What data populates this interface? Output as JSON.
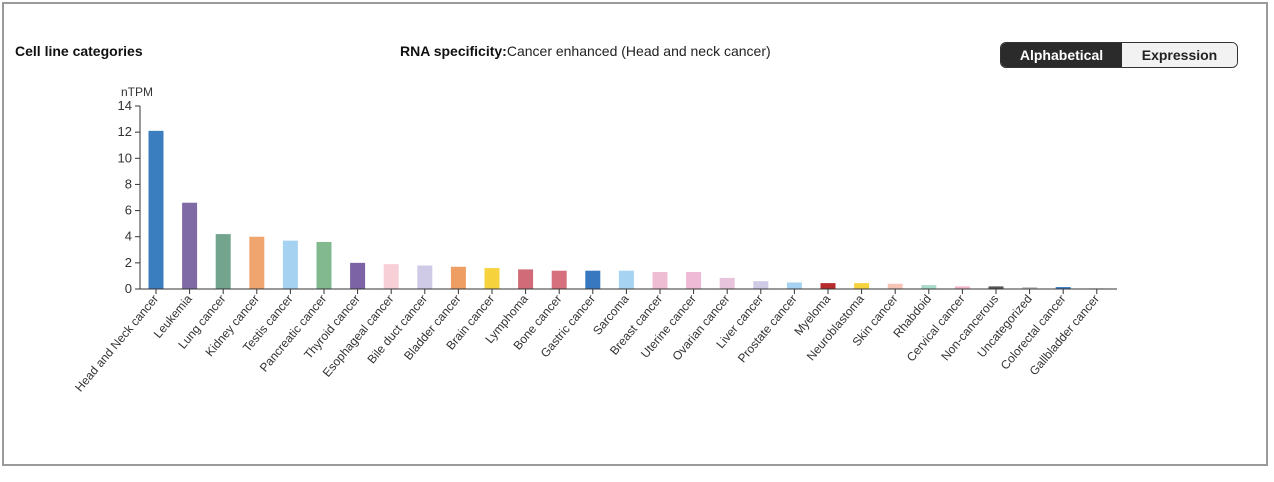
{
  "panel": {
    "title": "Cell line categories"
  },
  "specificity": {
    "label": "RNA specificity:",
    "value": "Cancer enhanced (Head and neck cancer)"
  },
  "sort_toggle": {
    "options": [
      "Alphabetical",
      "Expression"
    ],
    "selected": "Alphabetical"
  },
  "chart_data": {
    "type": "bar",
    "title": "",
    "xlabel": "",
    "ylabel": "nTPM",
    "ylim": [
      0,
      14
    ],
    "yticks": [
      0,
      2,
      4,
      6,
      8,
      10,
      12,
      14
    ],
    "grid": false,
    "categories": [
      "Head and Neck cancer",
      "Leukemia",
      "Lung cancer",
      "Kidney cancer",
      "Testis cancer",
      "Pancreatic cancer",
      "Thyroid cancer",
      "Esophageal cancer",
      "Bile duct cancer",
      "Bladder cancer",
      "Brain cancer",
      "Lymphoma",
      "Bone cancer",
      "Gastric cancer",
      "Sarcoma",
      "Breast cancer",
      "Uterine cancer",
      "Ovarian cancer",
      "Liver cancer",
      "Prostate cancer",
      "Myeloma",
      "Neuroblastoma",
      "Skin cancer",
      "Rhabdoid",
      "Cervical cancer",
      "Non-cancerous",
      "Uncategorized",
      "Colorectal cancer",
      "Gallbladder cancer"
    ],
    "values": [
      12.1,
      6.6,
      4.2,
      4.0,
      3.7,
      3.6,
      2.0,
      1.9,
      1.8,
      1.7,
      1.6,
      1.5,
      1.4,
      1.4,
      1.4,
      1.3,
      1.3,
      0.85,
      0.6,
      0.5,
      0.45,
      0.45,
      0.4,
      0.3,
      0.2,
      0.2,
      0.15,
      0.15,
      0.05
    ],
    "colors": [
      "#3b7ec0",
      "#7f6aa5",
      "#72a48e",
      "#f0a46e",
      "#a5d2f0",
      "#82b98e",
      "#7c63a6",
      "#f6cfd7",
      "#cfcbe6",
      "#ee9e63",
      "#f6d23c",
      "#d06b77",
      "#d5707c",
      "#3878c0",
      "#a6d3f2",
      "#efbdd3",
      "#eebad5",
      "#e8c3dc",
      "#cfcbe6",
      "#a5d2f0",
      "#b52a2c",
      "#f6d23c",
      "#f6c5b5",
      "#a9dcc8",
      "#f2b6c8",
      "#555555",
      "#c9c9c9",
      "#3b7ec0",
      "#cfcfcf"
    ]
  }
}
